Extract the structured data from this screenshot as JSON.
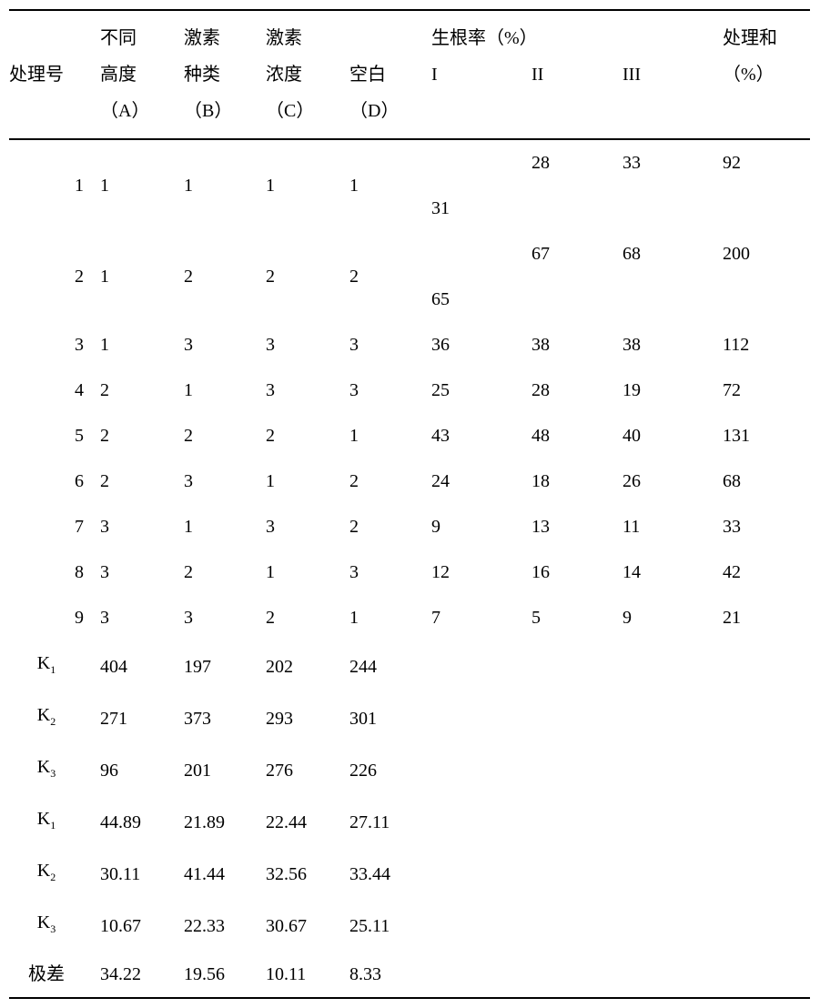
{
  "table": {
    "type": "table",
    "font_family": "SimSun",
    "font_size_pt": 15,
    "text_color": "#000000",
    "background_color": "#ffffff",
    "border_color": "#000000",
    "headers": {
      "treatment_no": [
        "处理号"
      ],
      "colA": [
        "不同",
        "高度",
        "（A）"
      ],
      "colB": [
        "激素",
        "种类",
        "（B）"
      ],
      "colC": [
        "激素",
        "浓度",
        "（C）"
      ],
      "colD": [
        "空白",
        "",
        "（D）"
      ],
      "root_rate_group": "生根率（%）",
      "root_I": "I",
      "root_II": "II",
      "root_III": "III",
      "treat_sum": [
        "处理和",
        "（%）"
      ]
    },
    "rows": [
      {
        "no": "1",
        "A": "1",
        "B": "1",
        "C": "1",
        "D": "1",
        "I": "31",
        "II": "28",
        "III": "33",
        "sum": "92"
      },
      {
        "no": "2",
        "A": "1",
        "B": "2",
        "C": "2",
        "D": "2",
        "I": "65",
        "II": "67",
        "III": "68",
        "sum": "200"
      },
      {
        "no": "3",
        "A": "1",
        "B": "3",
        "C": "3",
        "D": "3",
        "I": "36",
        "II": "38",
        "III": "38",
        "sum": "112"
      },
      {
        "no": "4",
        "A": "2",
        "B": "1",
        "C": "3",
        "D": "3",
        "I": "25",
        "II": "28",
        "III": "19",
        "sum": "72"
      },
      {
        "no": "5",
        "A": "2",
        "B": "2",
        "C": "2",
        "D": "1",
        "I": "43",
        "II": "48",
        "III": "40",
        "sum": "131"
      },
      {
        "no": "6",
        "A": "2",
        "B": "3",
        "C": "1",
        "D": "2",
        "I": "24",
        "II": "18",
        "III": "26",
        "sum": "68"
      },
      {
        "no": "7",
        "A": "3",
        "B": "1",
        "C": "3",
        "D": "2",
        "I": "9",
        "II": "13",
        "III": "11",
        "sum": "33"
      },
      {
        "no": "8",
        "A": "3",
        "B": "2",
        "C": "1",
        "D": "3",
        "I": "12",
        "II": "16",
        "III": "14",
        "sum": "42"
      },
      {
        "no": "9",
        "A": "3",
        "B": "3",
        "C": "2",
        "D": "1",
        "I": "7",
        "II": "5",
        "III": "9",
        "sum": "21"
      }
    ],
    "summary": [
      {
        "label": "K",
        "sub": "1",
        "A": "404",
        "B": "197",
        "C": "202",
        "D": "244"
      },
      {
        "label": "K",
        "sub": "2",
        "A": "271",
        "B": "373",
        "C": "293",
        "D": "301"
      },
      {
        "label": "K",
        "sub": "3",
        "A": "96",
        "B": "201",
        "C": "276",
        "D": "226"
      },
      {
        "label": "K",
        "sub": "1",
        "A": "44.89",
        "B": "21.89",
        "C": "22.44",
        "D": "27.11"
      },
      {
        "label": "K",
        "sub": "2",
        "A": "30.11",
        "B": "41.44",
        "C": "32.56",
        "D": "33.44"
      },
      {
        "label": "K",
        "sub": "3",
        "A": "10.67",
        "B": "22.33",
        "C": "30.67",
        "D": "25.11"
      },
      {
        "label": "极差",
        "sub": "",
        "A": "34.22",
        "B": "19.56",
        "C": "10.11",
        "D": "8.33"
      }
    ]
  }
}
